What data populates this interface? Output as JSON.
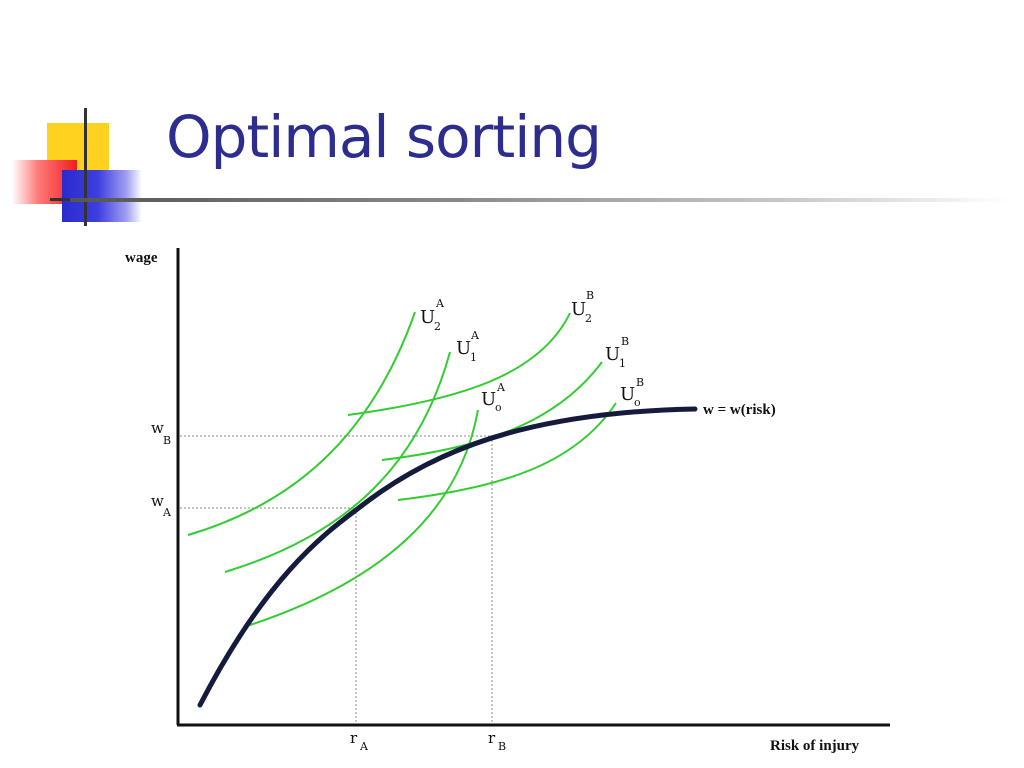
{
  "slide": {
    "title": "Optimal sorting"
  },
  "axes": {
    "y_label": "wage",
    "x_label": "Risk of injury",
    "y_ticks": [
      {
        "main": "w",
        "sub": "B"
      },
      {
        "main": "w",
        "sub": "A"
      }
    ],
    "x_ticks": [
      {
        "main": "r",
        "sub": "A"
      },
      {
        "main": "r",
        "sub": "B"
      }
    ]
  },
  "curves": {
    "hedonic_label": "w = w(risk)",
    "indifference": [
      {
        "main": "U",
        "sub": "2",
        "sup": "A"
      },
      {
        "main": "U",
        "sub": "1",
        "sup": "A"
      },
      {
        "main": "U",
        "sub": "o",
        "sup": "A"
      },
      {
        "main": "U",
        "sub": "2",
        "sup": "B"
      },
      {
        "main": "U",
        "sub": "1",
        "sup": "B"
      },
      {
        "main": "U",
        "sub": "o",
        "sup": "B"
      }
    ]
  },
  "colors": {
    "title": "#2d2d8f",
    "hedonic_curve": "#151b3d",
    "indifference_curve": "#33cc33",
    "axis": "#111111",
    "guide_line": "#888888"
  }
}
